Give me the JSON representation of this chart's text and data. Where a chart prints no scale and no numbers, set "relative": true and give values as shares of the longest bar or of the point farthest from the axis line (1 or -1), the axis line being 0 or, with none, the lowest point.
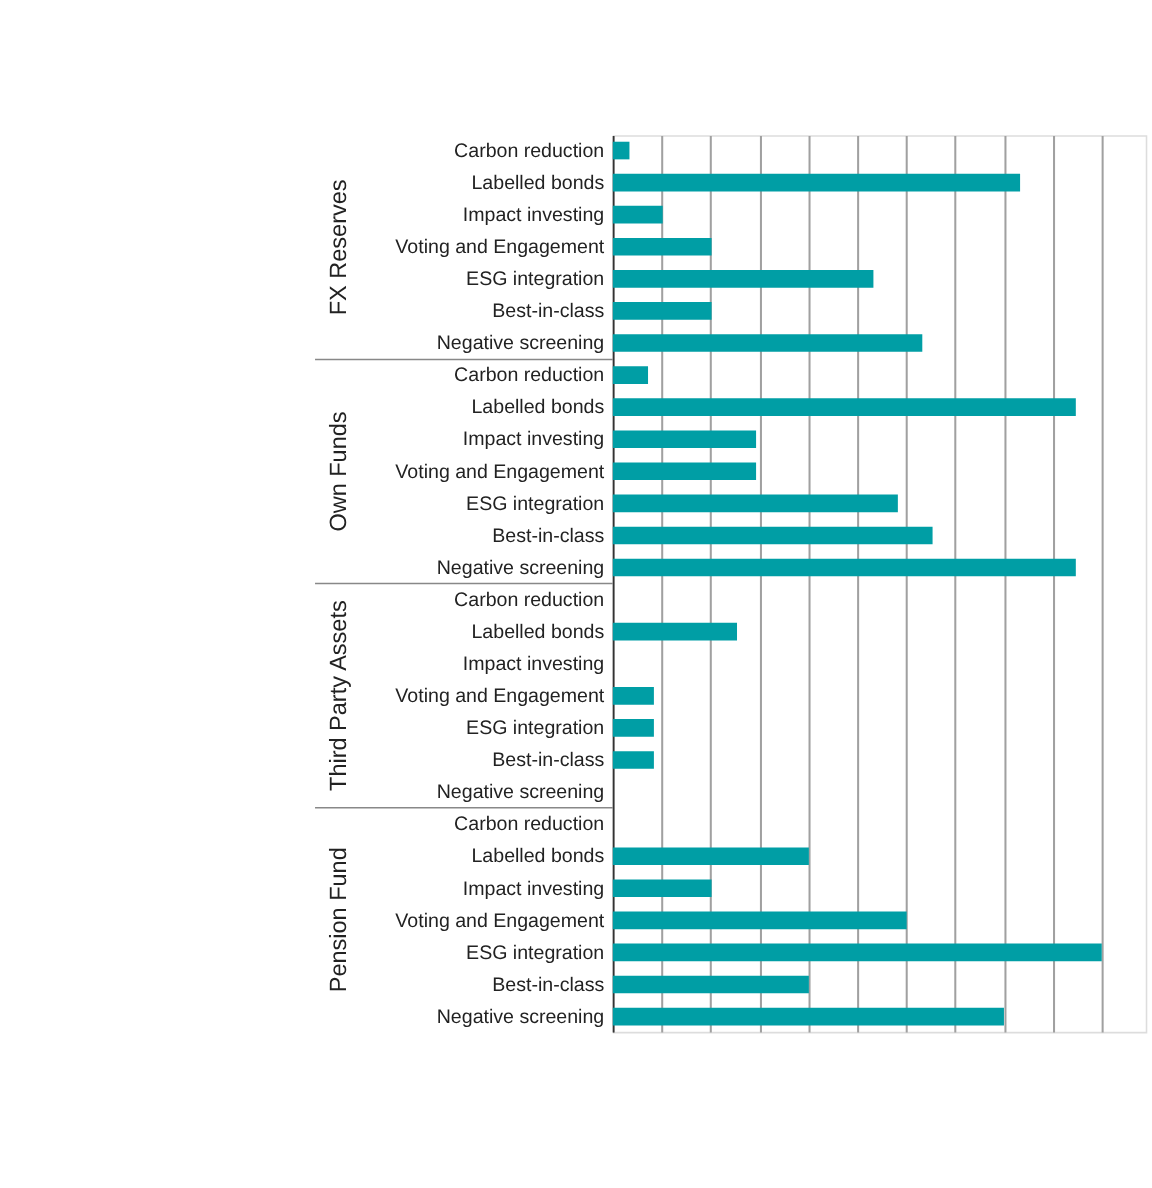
{
  "chart_data": {
    "type": "bar",
    "orientation": "horizontal",
    "relative": true,
    "grid": "x",
    "color": "#009ea5",
    "annotations": [
      "FX Reserves",
      "Own Funds",
      "Third Party Assets",
      "Pension Fund"
    ],
    "categories": [
      "Carbon reduction",
      "Labelled bonds",
      "Impact investing",
      "Voting and Engagement",
      "ESG integration",
      "Best-in-class",
      "Negative screening",
      "Carbon reduction",
      "Labelled bonds",
      "Impact investing",
      "Voting and Engagement",
      "ESG integration",
      "Best-in-class",
      "Negative screening",
      "Carbon reduction",
      "Labelled bonds",
      "Impact investing",
      "Voting and Engagement",
      "ESG integration",
      "Best-in-class",
      "Negative screening",
      "Carbon reduction",
      "Labelled bonds",
      "Impact investing",
      "Voting and Engagement",
      "ESG integration",
      "Best-in-class",
      "Negative screening"
    ],
    "values": [
      0.034,
      0.833,
      0.102,
      0.202,
      0.533,
      0.202,
      0.633,
      0.072,
      0.947,
      0.293,
      0.293,
      0.583,
      0.654,
      0.947,
      0,
      0.254,
      0,
      0.084,
      0.084,
      0.084,
      0,
      0,
      0.401,
      0.202,
      0.601,
      1,
      0.401,
      0.8
    ]
  }
}
